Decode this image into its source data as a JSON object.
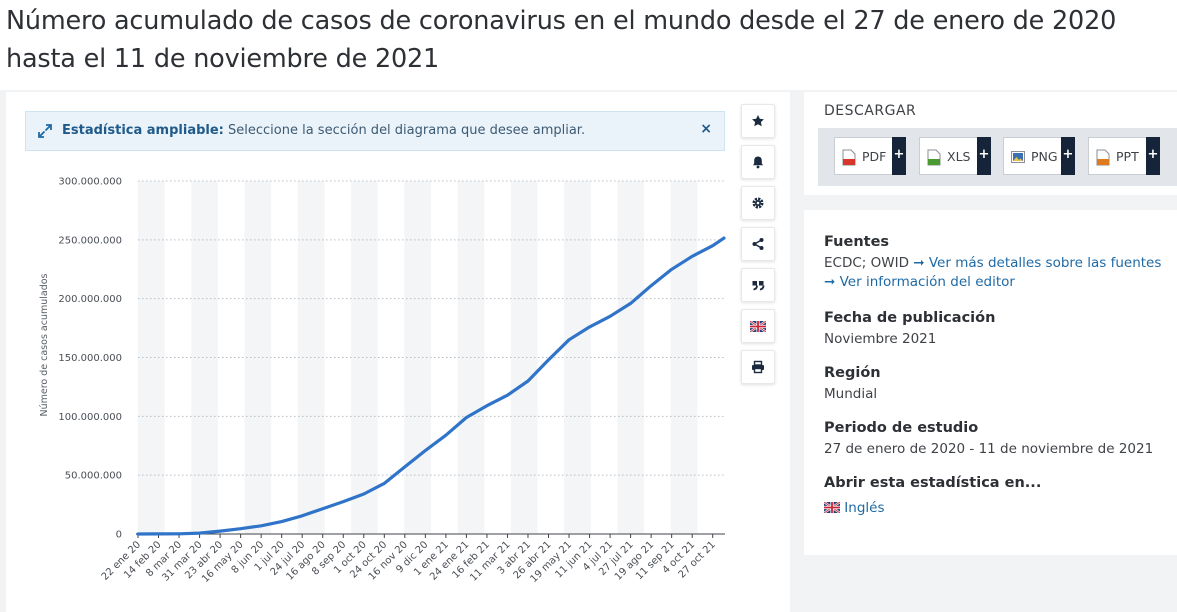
{
  "page": {
    "title": "Número acumulado de casos de coronavirus en el mundo desde el 27 de enero de 2020 hasta el 11 de noviembre de 2021"
  },
  "zoom_banner": {
    "label": "Estadística ampliable:",
    "text": " Seleccione la sección del diagrama que desee ampliar.",
    "close": "×"
  },
  "toolbar": {
    "icons": [
      "star-icon",
      "bell-icon",
      "gear-icon",
      "share-icon",
      "quote-icon",
      "uk-flag-icon",
      "print-icon"
    ]
  },
  "download": {
    "title": "DESCARGAR",
    "buttons": [
      {
        "label": "PDF",
        "plus": "+",
        "color": "#d9362b"
      },
      {
        "label": "XLS",
        "plus": "+",
        "color": "#4a9a33"
      },
      {
        "label": "PNG",
        "plus": "+",
        "color": "#3a6fb0"
      },
      {
        "label": "PPT",
        "plus": "+",
        "color": "#e07a1e"
      }
    ]
  },
  "info": {
    "sources_label": "Fuentes",
    "sources_value": "ECDC; OWID",
    "sources_link": "Ver más detalles sobre las fuentes",
    "editor_link": "Ver información del editor",
    "pub_label": "Fecha de publicación",
    "pub_value": "Noviembre 2021",
    "region_label": "Región",
    "region_value": "Mundial",
    "period_label": "Periodo de estudio",
    "period_value": "27 de enero de 2020 - 11 de noviembre de 2021",
    "open_label": "Abrir esta estadística en...",
    "open_value": "Inglés"
  },
  "colors": {
    "line": "#2f74c8",
    "accent": "#1f6aa5",
    "dark_plus": "#16243a"
  },
  "chart_data": {
    "type": "line",
    "title": "",
    "xlabel": "",
    "ylabel": "Número de casos acumulados",
    "ylim": [
      0,
      300000000
    ],
    "yticks": [
      0,
      50000000,
      100000000,
      150000000,
      200000000,
      250000000,
      300000000
    ],
    "ytick_labels": [
      "0",
      "50.000.000",
      "100.000.000",
      "150.000.000",
      "200.000.000",
      "250.000.000",
      "300.000.000"
    ],
    "x_tick_labels": [
      "22 ene 20",
      "14 feb 20",
      "8 mar 20",
      "31 mar 20",
      "23 abr 20",
      "16 may 20",
      "8 jun 20",
      "1 jul 20",
      "24 jul 20",
      "16 ago 20",
      "8 sep 20",
      "1 oct 20",
      "24 oct 20",
      "16 nov 20",
      "9 dic 20",
      "1 ene 21",
      "24 ene 21",
      "16 feb 21",
      "11 mar 21",
      "3 abr 21",
      "26 abr 21",
      "19 may 21",
      "11 jun 21",
      "4 jul 21",
      "27 jul 21",
      "19 ago 21",
      "11 sep 21",
      "4 oct 21",
      "27 oct 21"
    ],
    "grid": true,
    "series": [
      {
        "values": [
          [
            0,
            0
          ],
          [
            1,
            100000
          ],
          [
            2,
            200000
          ],
          [
            3,
            800000
          ],
          [
            4,
            2500000
          ],
          [
            5,
            4500000
          ],
          [
            6,
            7000000
          ],
          [
            7,
            10500000
          ],
          [
            8,
            15500000
          ],
          [
            9,
            21500000
          ],
          [
            10,
            27500000
          ],
          [
            11,
            34000000
          ],
          [
            12,
            43000000
          ],
          [
            13,
            57000000
          ],
          [
            14,
            71000000
          ],
          [
            15,
            84000000
          ],
          [
            16,
            99000000
          ],
          [
            17,
            109000000
          ],
          [
            18,
            118000000
          ],
          [
            19,
            130000000
          ],
          [
            20,
            148000000
          ],
          [
            21,
            165000000
          ],
          [
            22,
            176000000
          ],
          [
            23,
            185000000
          ],
          [
            24,
            196000000
          ],
          [
            25,
            211000000
          ],
          [
            26,
            225000000
          ],
          [
            27,
            236000000
          ],
          [
            28,
            245000000
          ],
          [
            28.55,
            251500000
          ]
        ]
      }
    ]
  }
}
